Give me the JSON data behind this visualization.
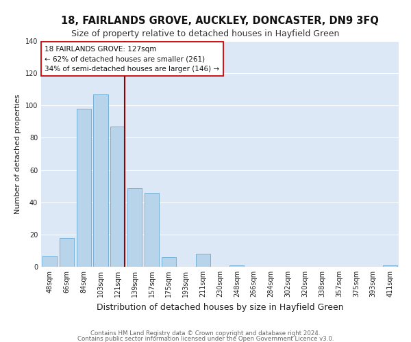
{
  "title": "18, FAIRLANDS GROVE, AUCKLEY, DONCASTER, DN9 3FQ",
  "subtitle": "Size of property relative to detached houses in Hayfield Green",
  "xlabel": "Distribution of detached houses by size in Hayfield Green",
  "ylabel": "Number of detached properties",
  "bar_labels": [
    "48sqm",
    "66sqm",
    "84sqm",
    "103sqm",
    "121sqm",
    "139sqm",
    "157sqm",
    "175sqm",
    "193sqm",
    "211sqm",
    "230sqm",
    "248sqm",
    "266sqm",
    "284sqm",
    "302sqm",
    "320sqm",
    "338sqm",
    "357sqm",
    "375sqm",
    "393sqm",
    "411sqm"
  ],
  "bar_values": [
    7,
    18,
    98,
    107,
    87,
    49,
    46,
    6,
    0,
    8,
    0,
    1,
    0,
    0,
    0,
    0,
    0,
    0,
    0,
    0,
    1
  ],
  "bar_color": "#b8d4ea",
  "bar_edge_color": "#6aaad4",
  "vline_index": 4,
  "vline_color": "#8b0000",
  "ylim": [
    0,
    140
  ],
  "yticks": [
    0,
    20,
    40,
    60,
    80,
    100,
    120,
    140
  ],
  "annotation_title": "18 FAIRLANDS GROVE: 127sqm",
  "annotation_line1": "← 62% of detached houses are smaller (261)",
  "annotation_line2": "34% of semi-detached houses are larger (146) →",
  "annotation_box_facecolor": "#ffffff",
  "annotation_box_edgecolor": "#cc0000",
  "footer_line1": "Contains HM Land Registry data © Crown copyright and database right 2024.",
  "footer_line2": "Contains public sector information licensed under the Open Government Licence v3.0.",
  "fig_facecolor": "#ffffff",
  "plot_facecolor": "#dce8f5",
  "grid_color": "#ffffff",
  "title_fontsize": 10.5,
  "subtitle_fontsize": 9,
  "xlabel_fontsize": 9,
  "ylabel_fontsize": 8,
  "tick_fontsize": 7,
  "annotation_fontsize": 7.5,
  "footer_fontsize": 6.2
}
